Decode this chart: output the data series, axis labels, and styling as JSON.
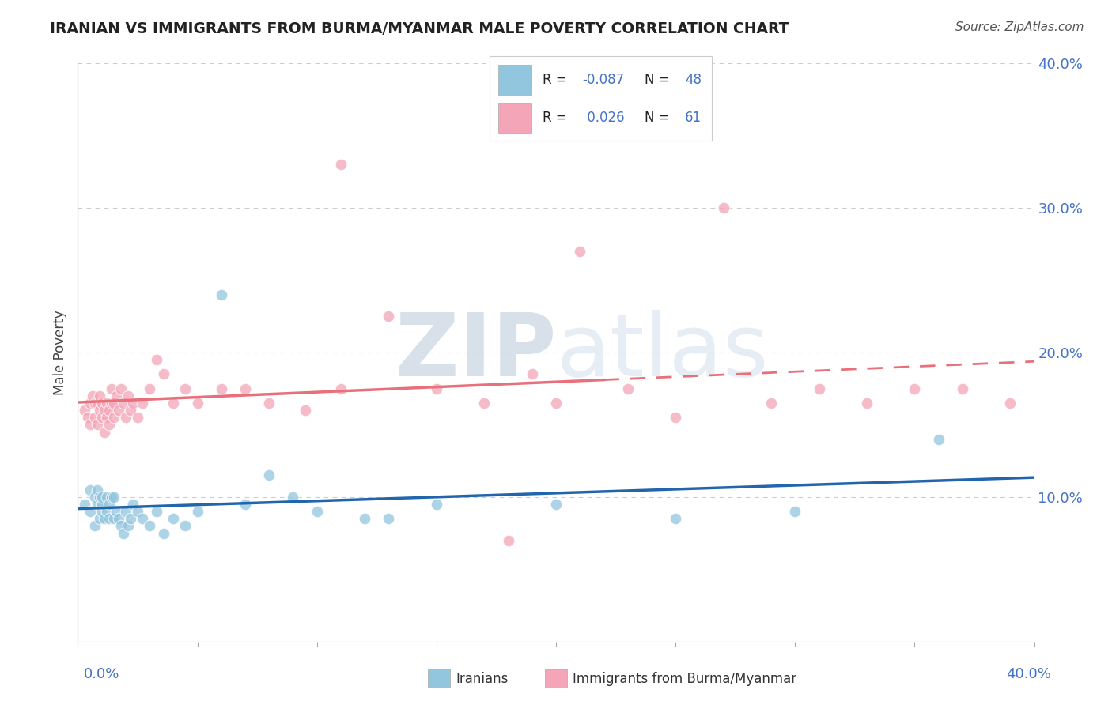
{
  "title": "IRANIAN VS IMMIGRANTS FROM BURMA/MYANMAR MALE POVERTY CORRELATION CHART",
  "source": "Source: ZipAtlas.com",
  "ylabel": "Male Poverty",
  "y_ticks": [
    0.0,
    0.1,
    0.2,
    0.3,
    0.4
  ],
  "y_tick_labels": [
    "",
    "10.0%",
    "20.0%",
    "30.0%",
    "40.0%"
  ],
  "xlim": [
    0.0,
    0.4
  ],
  "ylim": [
    0.0,
    0.4
  ],
  "color_blue": "#92c5de",
  "color_pink": "#f4a5b8",
  "color_blue_line": "#2166ac",
  "color_pink_line": "#e8707a",
  "watermark_color": "#d0dce8",
  "iranians_x": [
    0.003,
    0.005,
    0.005,
    0.007,
    0.007,
    0.008,
    0.008,
    0.009,
    0.009,
    0.01,
    0.01,
    0.01,
    0.011,
    0.012,
    0.012,
    0.013,
    0.013,
    0.014,
    0.015,
    0.015,
    0.016,
    0.017,
    0.018,
    0.019,
    0.02,
    0.021,
    0.022,
    0.023,
    0.025,
    0.027,
    0.03,
    0.033,
    0.036,
    0.04,
    0.045,
    0.05,
    0.06,
    0.07,
    0.08,
    0.09,
    0.1,
    0.12,
    0.13,
    0.15,
    0.2,
    0.25,
    0.3,
    0.36
  ],
  "iranians_y": [
    0.095,
    0.09,
    0.105,
    0.1,
    0.08,
    0.095,
    0.105,
    0.085,
    0.1,
    0.09,
    0.095,
    0.1,
    0.085,
    0.09,
    0.1,
    0.085,
    0.095,
    0.1,
    0.085,
    0.1,
    0.09,
    0.085,
    0.08,
    0.075,
    0.09,
    0.08,
    0.085,
    0.095,
    0.09,
    0.085,
    0.08,
    0.09,
    0.075,
    0.085,
    0.08,
    0.09,
    0.24,
    0.095,
    0.115,
    0.1,
    0.09,
    0.085,
    0.085,
    0.095,
    0.095,
    0.085,
    0.09,
    0.14
  ],
  "burma_x": [
    0.003,
    0.004,
    0.005,
    0.005,
    0.006,
    0.007,
    0.007,
    0.008,
    0.008,
    0.009,
    0.009,
    0.01,
    0.01,
    0.011,
    0.011,
    0.012,
    0.012,
    0.013,
    0.013,
    0.014,
    0.014,
    0.015,
    0.015,
    0.016,
    0.017,
    0.018,
    0.019,
    0.02,
    0.021,
    0.022,
    0.023,
    0.025,
    0.027,
    0.03,
    0.033,
    0.036,
    0.04,
    0.045,
    0.05,
    0.06,
    0.07,
    0.08,
    0.095,
    0.11,
    0.13,
    0.15,
    0.17,
    0.19,
    0.2,
    0.21,
    0.23,
    0.25,
    0.27,
    0.29,
    0.31,
    0.33,
    0.35,
    0.37,
    0.39,
    0.11,
    0.18
  ],
  "burma_y": [
    0.16,
    0.155,
    0.165,
    0.15,
    0.17,
    0.155,
    0.165,
    0.15,
    0.165,
    0.16,
    0.17,
    0.155,
    0.165,
    0.145,
    0.16,
    0.155,
    0.165,
    0.15,
    0.16,
    0.165,
    0.175,
    0.155,
    0.165,
    0.17,
    0.16,
    0.175,
    0.165,
    0.155,
    0.17,
    0.16,
    0.165,
    0.155,
    0.165,
    0.175,
    0.195,
    0.185,
    0.165,
    0.175,
    0.165,
    0.175,
    0.175,
    0.165,
    0.16,
    0.175,
    0.225,
    0.175,
    0.165,
    0.185,
    0.165,
    0.27,
    0.175,
    0.155,
    0.3,
    0.165,
    0.175,
    0.165,
    0.175,
    0.175,
    0.165,
    0.33,
    0.07
  ]
}
